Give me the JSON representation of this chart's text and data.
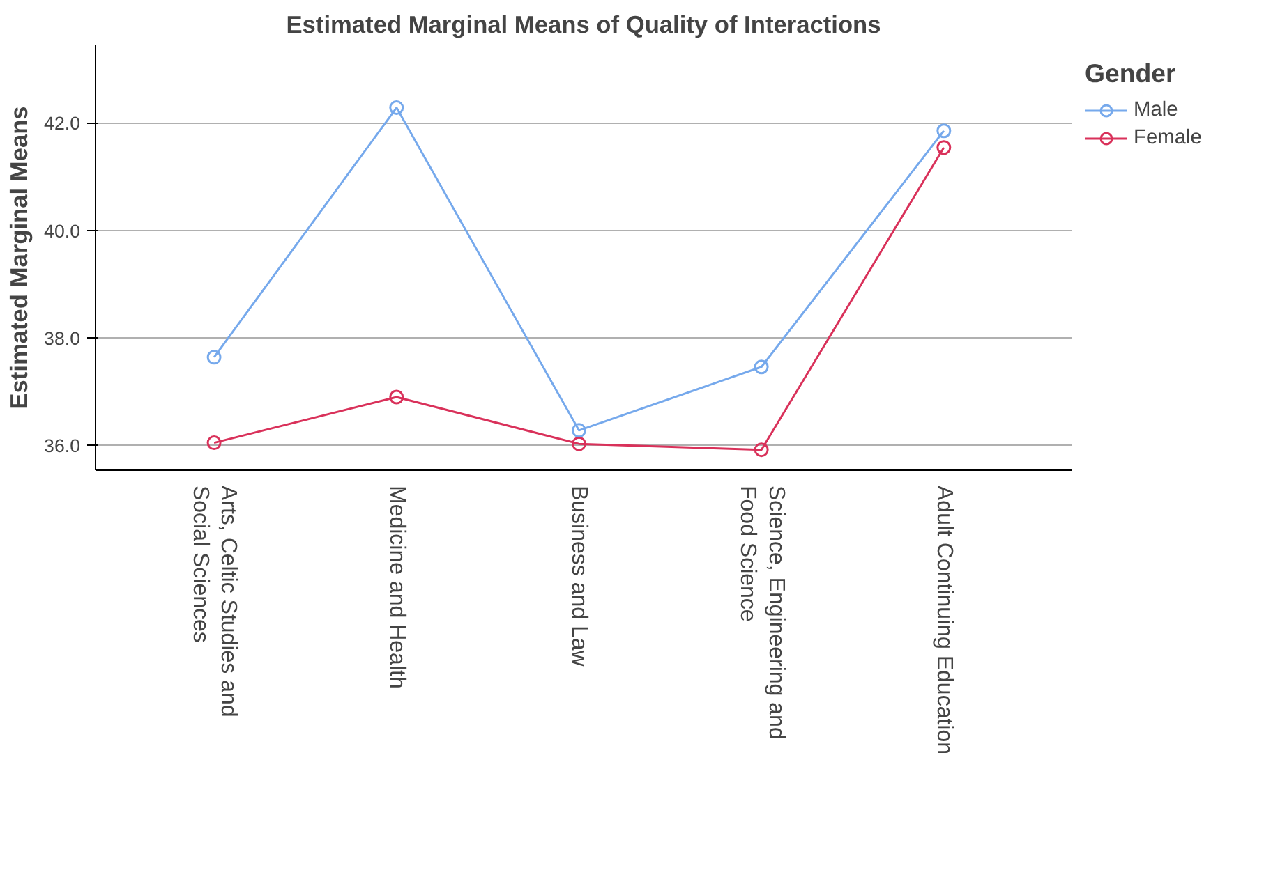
{
  "chart_data": {
    "type": "line",
    "title": "Estimated Marginal Means of Quality of Interactions",
    "ylabel": "Estimated Marginal Means",
    "categories": [
      "Arts, Celtic Studies and Social Sciences",
      "Medicine and Health",
      "Business and Law",
      "Science, Engineering and Food Science",
      "Adult Continuing Education"
    ],
    "series": [
      {
        "name": "Male",
        "color": "#76a9ec",
        "values": [
          37.64,
          42.28,
          36.28,
          37.46,
          41.85
        ]
      },
      {
        "name": "Female",
        "color": "#d9315a",
        "values": [
          36.05,
          36.9,
          36.03,
          35.92,
          41.54
        ]
      }
    ],
    "ylim": [
      35.54,
      43.44
    ],
    "yticks": [
      {
        "value": 36,
        "label": "36.0"
      },
      {
        "value": 38,
        "label": "38.0"
      },
      {
        "value": 40,
        "label": "40.0"
      },
      {
        "value": 42,
        "label": "42.0"
      }
    ],
    "grid": "y",
    "legend": "right",
    "legend_title": "Gender",
    "marker": "circle",
    "line_style": "solid"
  }
}
